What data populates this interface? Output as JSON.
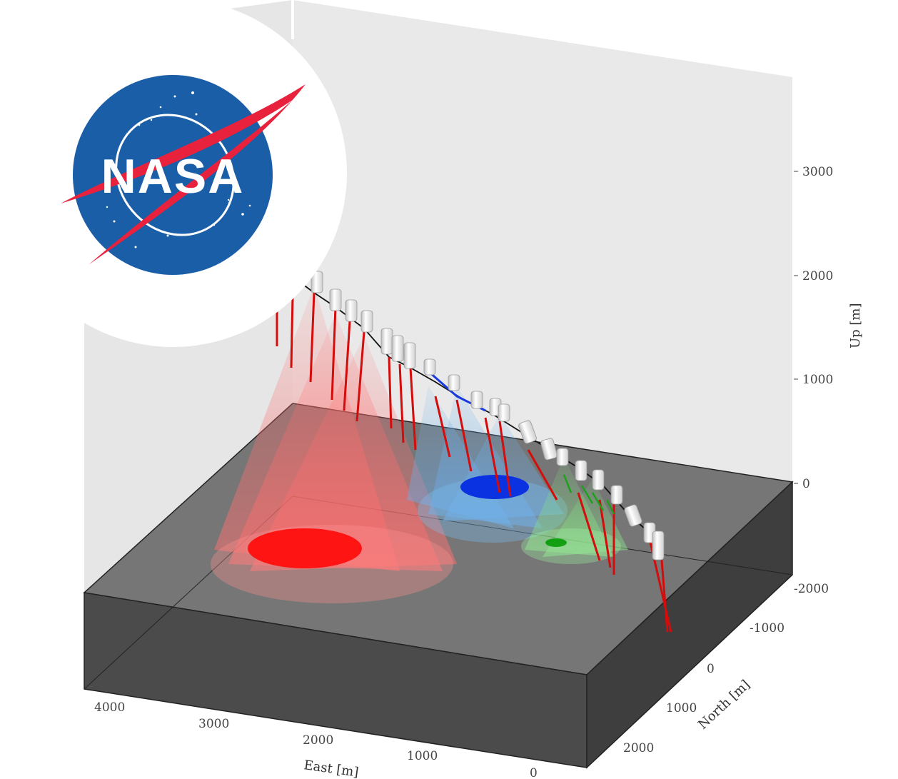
{
  "logo": {
    "text": "NASA",
    "icon": "nasa-meatball-logo",
    "colors": {
      "blue": "#1b5ea8",
      "red": "#e8213c"
    }
  },
  "chart_data": {
    "type": "3d-trajectory",
    "axes": {
      "east": {
        "label": "East [m]",
        "ticks": [
          4000,
          3000,
          2000,
          1000,
          0
        ],
        "range": [
          0,
          4000
        ]
      },
      "north": {
        "label": "North [m]",
        "ticks": [
          -2000,
          -1000,
          0,
          1000,
          2000
        ],
        "range": [
          -2000,
          2000
        ]
      },
      "up": {
        "label": "Up [m]",
        "ticks": [
          0,
          1000,
          2000,
          3000
        ],
        "range": [
          -1000,
          3500
        ]
      }
    },
    "series": [
      {
        "color": "#e8161a",
        "target_east": 2900,
        "target_north": 300,
        "footprint_radius": 550
      },
      {
        "color": "#1033d6",
        "target_east": 400,
        "target_north": -700,
        "footprint_radius": 300
      },
      {
        "color": "#23a329",
        "target_east": -350,
        "target_north": 100,
        "footprint_radius": 180
      }
    ],
    "grid": false,
    "colors": {
      "wall": "#e9e9e9",
      "ground_top": "#777777",
      "ground_side": "#4a4a4a",
      "path": "#000000"
    }
  }
}
